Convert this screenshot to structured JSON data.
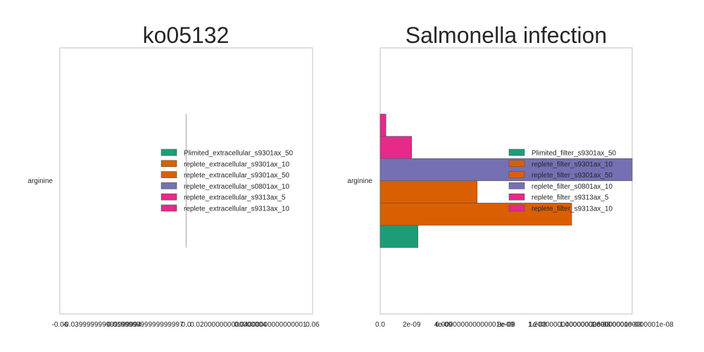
{
  "chart_data": [
    {
      "type": "bar",
      "orientation": "horizontal",
      "title": "ko05132",
      "xlabel": "",
      "ylabel": "",
      "categories": [
        "arginine"
      ],
      "xlim": [
        -0.06,
        0.06
      ],
      "xticks": [
        "-0.06",
        "-0.039999999999999994",
        "-0.019999999999999997",
        "0.0",
        "0.020000000000000004",
        "0.04000000000000001",
        "0.06"
      ],
      "grid": false,
      "legend_position": "center-right",
      "series": [
        {
          "name": "Plimited_extracellular_s9301ax_50",
          "values": [
            0
          ],
          "color": "#1b9e77"
        },
        {
          "name": "replete_extracellular_s9301ax_10",
          "values": [
            0
          ],
          "color": "#d95f02"
        },
        {
          "name": "replete_extracellular_s9301ax_50",
          "values": [
            0
          ],
          "color": "#d95f02"
        },
        {
          "name": "replete_extracellular_s0801ax_10",
          "values": [
            0
          ],
          "color": "#7570b3"
        },
        {
          "name": "replete_extracellular_s9313ax_5",
          "values": [
            0
          ],
          "color": "#e7298a"
        },
        {
          "name": "replete_extracellular_s9313ax_10",
          "values": [
            0
          ],
          "color": "#e7298a"
        }
      ]
    },
    {
      "type": "bar",
      "orientation": "horizontal",
      "title": "Salmonella infection",
      "xlabel": "",
      "ylabel": "",
      "categories": [
        "arginine"
      ],
      "xlim": [
        0,
        1e-08
      ],
      "xticks": [
        "0.0",
        "2e-09",
        "4e-09",
        "6.000000000000001e-09",
        "8e-09",
        "1e-08",
        "1.2000000000000002e-08",
        "1.4000000000000001e-08",
        "1.6000000000000001e-08"
      ],
      "grid": false,
      "legend_position": "center-right",
      "series": [
        {
          "name": "Plimited_filter_s9301ax_50",
          "values": [
            1.5e-09
          ],
          "color": "#1b9e77"
        },
        {
          "name": "replete_filter_s9301ax_10",
          "values": [
            7.6e-09
          ],
          "color": "#d95f02"
        },
        {
          "name": "replete_filter_s9301ax_50",
          "values": [
            3.85e-09
          ],
          "color": "#d95f02"
        },
        {
          "name": "replete_filter_s0801ax_10",
          "values": [
            1e-08
          ],
          "color": "#7570b3"
        },
        {
          "name": "replete_filter_s9313ax_5",
          "values": [
            1.25e-09
          ],
          "color": "#e7298a"
        },
        {
          "name": "replete_filter_s9313ax_10",
          "values": [
            2.3e-10
          ],
          "color": "#e7298a"
        }
      ]
    }
  ]
}
